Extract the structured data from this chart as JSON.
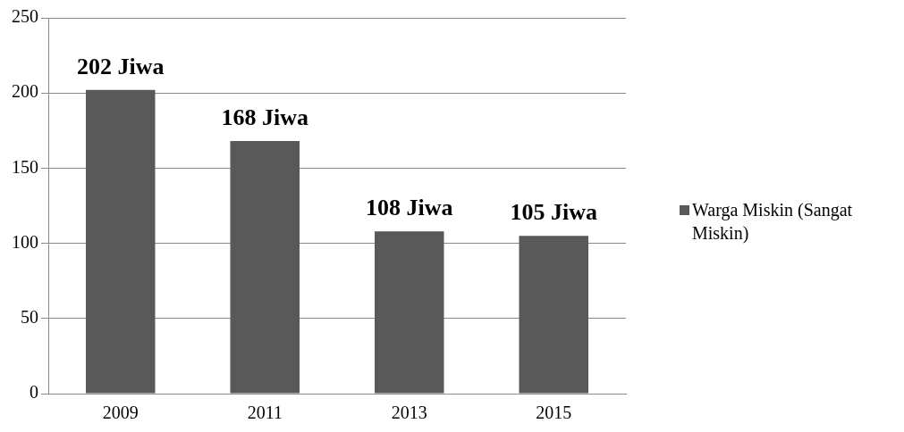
{
  "chart_data": {
    "type": "bar",
    "categories": [
      "2009",
      "2011",
      "2013",
      "2015"
    ],
    "series": [
      {
        "name": "Warga Miskin (Sangat Miskin)",
        "color": "#595959",
        "values": [
          202,
          168,
          108,
          105
        ],
        "value_labels": [
          "202 Jiwa",
          "168 Jiwa",
          "108 Jiwa",
          "105 Jiwa"
        ]
      }
    ],
    "ylim": [
      0,
      250
    ],
    "yticks": [
      0,
      50,
      100,
      150,
      200,
      250
    ],
    "grid": "y",
    "legend": "right"
  }
}
